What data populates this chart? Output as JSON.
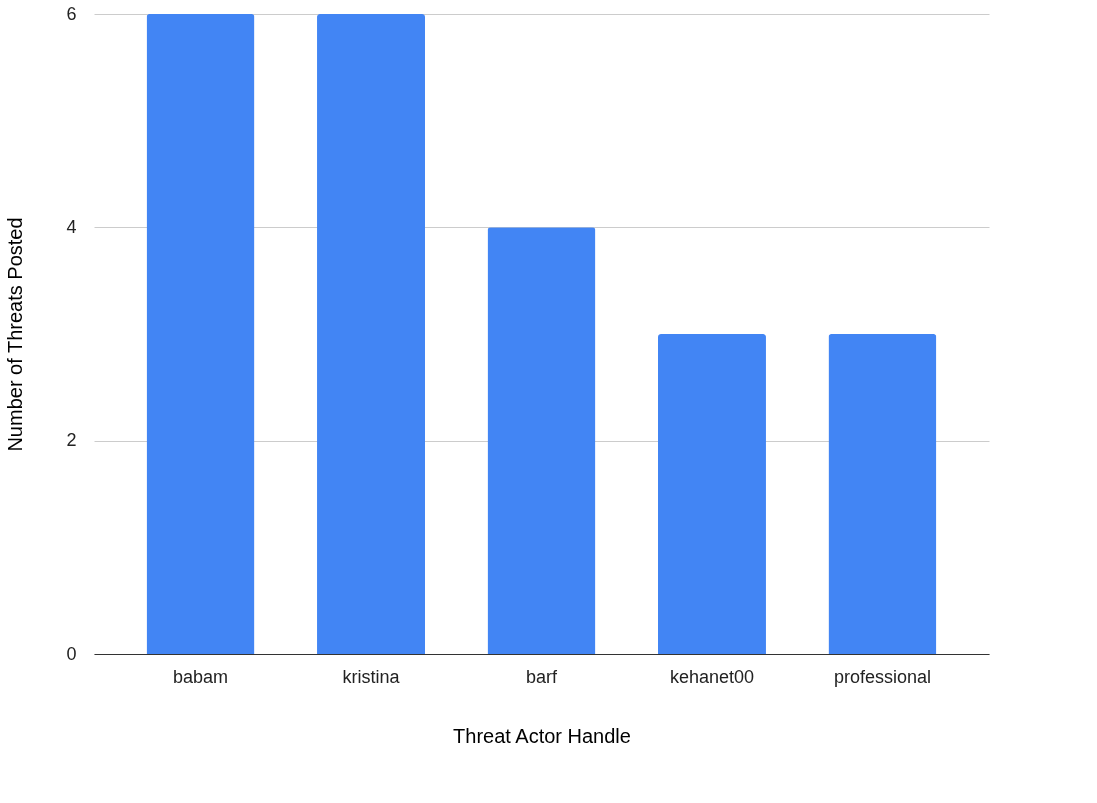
{
  "chart_data": {
    "type": "bar",
    "xlabel": "Threat Actor Handle",
    "ylabel": "Number of Threats Posted",
    "categories": [
      "babam",
      "kristina",
      "barf",
      "kehanet00",
      "professional"
    ],
    "values": [
      6,
      6,
      4,
      3,
      3
    ],
    "color": "#4285f4",
    "ylim": [
      0,
      6
    ],
    "yticks": [
      0,
      2,
      4,
      6
    ],
    "grid": "y"
  }
}
